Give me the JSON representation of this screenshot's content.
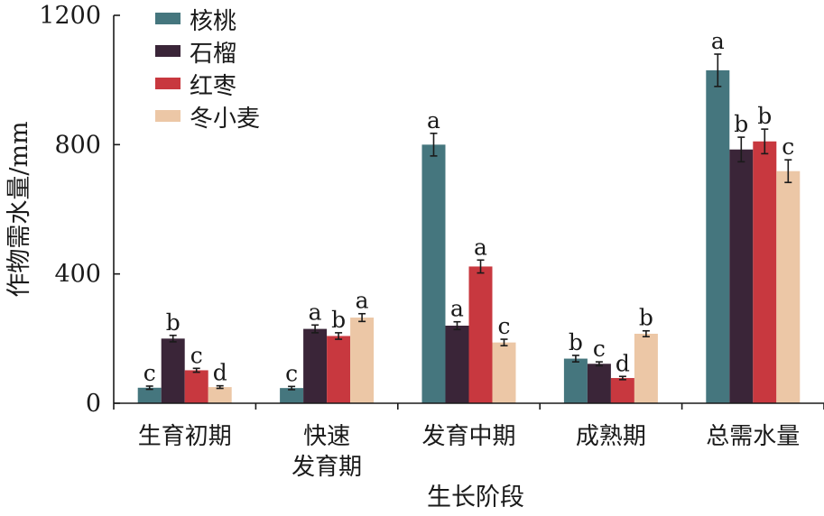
{
  "chart_data": {
    "type": "bar",
    "title": "",
    "xlabel": "生长阶段",
    "ylabel": "作物需水量/mm",
    "ylim": [
      0,
      1200
    ],
    "yticks": [
      0,
      400,
      800,
      1200
    ],
    "grid": false,
    "legend_position": "top-left",
    "categories": [
      [
        "生育初期"
      ],
      [
        "快速",
        "发育期"
      ],
      [
        "发育中期"
      ],
      [
        "成熟期"
      ],
      [
        "总需水量"
      ]
    ],
    "series": [
      {
        "name": "核桃",
        "color": "#45767e",
        "values": [
          48,
          47,
          800,
          138,
          1030
        ],
        "errors": [
          5,
          5,
          35,
          10,
          50
        ],
        "labels": [
          "c",
          "c",
          "a",
          "b",
          "a"
        ]
      },
      {
        "name": "石榴",
        "color": "#3a2538",
        "values": [
          200,
          230,
          240,
          122,
          785
        ],
        "errors": [
          10,
          12,
          12,
          6,
          38
        ],
        "labels": [
          "b",
          "a",
          "a",
          "c",
          "b"
        ]
      },
      {
        "name": "红枣",
        "color": "#c8383f",
        "values": [
          102,
          208,
          423,
          78,
          810
        ],
        "errors": [
          6,
          10,
          20,
          5,
          38
        ],
        "labels": [
          "c",
          "b",
          "a",
          "d",
          "b"
        ]
      },
      {
        "name": "冬小麦",
        "color": "#ecc7a6",
        "values": [
          50,
          265,
          188,
          215,
          718
        ],
        "errors": [
          4,
          12,
          10,
          9,
          35
        ],
        "labels": [
          "d",
          "a",
          "c",
          "b",
          "c"
        ]
      }
    ]
  }
}
